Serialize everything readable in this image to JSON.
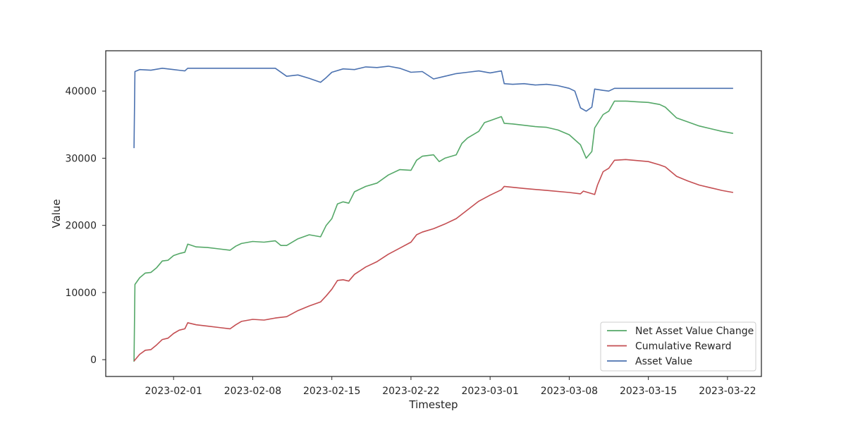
{
  "chart_data": {
    "type": "line",
    "title": "",
    "xlabel": "Timestep",
    "ylabel": "Value",
    "x_type": "date",
    "xlim": [
      "2023-01-26",
      "2023-03-25"
    ],
    "ylim": [
      -2500,
      46000
    ],
    "x_ticks": [
      "2023-02-01",
      "2023-02-08",
      "2023-02-15",
      "2023-02-22",
      "2023-03-01",
      "2023-03-08",
      "2023-03-15",
      "2023-03-22"
    ],
    "y_ticks": [
      0,
      10000,
      20000,
      30000,
      40000
    ],
    "y_tick_labels": [
      "0",
      "10000",
      "20000",
      "30000",
      "40000"
    ],
    "grid": false,
    "legend_position": "lower-right",
    "series": [
      {
        "name": "Net Asset Value Change",
        "color": "#55a868",
        "points": [
          [
            "2023-01-28T12:00",
            -300
          ],
          [
            "2023-01-28T14:00",
            11200
          ],
          [
            "2023-01-29T00:00",
            12200
          ],
          [
            "2023-01-29T12:00",
            12900
          ],
          [
            "2023-01-30T00:00",
            13000
          ],
          [
            "2023-01-30T12:00",
            13700
          ],
          [
            "2023-01-31T00:00",
            14700
          ],
          [
            "2023-01-31T12:00",
            14800
          ],
          [
            "2023-02-01T00:00",
            15500
          ],
          [
            "2023-02-01T12:00",
            15800
          ],
          [
            "2023-02-02T00:00",
            16000
          ],
          [
            "2023-02-02T06:00",
            17200
          ],
          [
            "2023-02-03T00:00",
            16800
          ],
          [
            "2023-02-04T00:00",
            16700
          ],
          [
            "2023-02-05T00:00",
            16500
          ],
          [
            "2023-02-06T00:00",
            16300
          ],
          [
            "2023-02-06T12:00",
            16900
          ],
          [
            "2023-02-07T00:00",
            17300
          ],
          [
            "2023-02-08T00:00",
            17600
          ],
          [
            "2023-02-09T00:00",
            17500
          ],
          [
            "2023-02-10T00:00",
            17700
          ],
          [
            "2023-02-10T12:00",
            17000
          ],
          [
            "2023-02-11T00:00",
            17000
          ],
          [
            "2023-02-12T00:00",
            18000
          ],
          [
            "2023-02-13T00:00",
            18600
          ],
          [
            "2023-02-14T00:00",
            18300
          ],
          [
            "2023-02-14T12:00",
            20000
          ],
          [
            "2023-02-15T00:00",
            21000
          ],
          [
            "2023-02-15T12:00",
            23200
          ],
          [
            "2023-02-16T00:00",
            23500
          ],
          [
            "2023-02-16T12:00",
            23300
          ],
          [
            "2023-02-17T00:00",
            25000
          ],
          [
            "2023-02-18T00:00",
            25800
          ],
          [
            "2023-02-19T00:00",
            26300
          ],
          [
            "2023-02-20T00:00",
            27500
          ],
          [
            "2023-02-21T00:00",
            28300
          ],
          [
            "2023-02-22T00:00",
            28200
          ],
          [
            "2023-02-22T12:00",
            29700
          ],
          [
            "2023-02-23T00:00",
            30300
          ],
          [
            "2023-02-24T00:00",
            30500
          ],
          [
            "2023-02-24T12:00",
            29500
          ],
          [
            "2023-02-25T00:00",
            30000
          ],
          [
            "2023-02-26T00:00",
            30500
          ],
          [
            "2023-02-26T12:00",
            32200
          ],
          [
            "2023-02-27T00:00",
            33000
          ],
          [
            "2023-02-28T00:00",
            34000
          ],
          [
            "2023-02-28T12:00",
            35300
          ],
          [
            "2023-03-01T00:00",
            35600
          ],
          [
            "2023-03-02T00:00",
            36200
          ],
          [
            "2023-03-02T06:00",
            35200
          ],
          [
            "2023-03-03T00:00",
            35100
          ],
          [
            "2023-03-04T00:00",
            34900
          ],
          [
            "2023-03-05T00:00",
            34700
          ],
          [
            "2023-03-06T00:00",
            34600
          ],
          [
            "2023-03-07T00:00",
            34200
          ],
          [
            "2023-03-08T00:00",
            33500
          ],
          [
            "2023-03-09T00:00",
            32000
          ],
          [
            "2023-03-09T12:00",
            30000
          ],
          [
            "2023-03-10T00:00",
            31000
          ],
          [
            "2023-03-10T06:00",
            34500
          ],
          [
            "2023-03-11T00:00",
            36500
          ],
          [
            "2023-03-11T12:00",
            37000
          ],
          [
            "2023-03-12T00:00",
            38500
          ],
          [
            "2023-03-13T00:00",
            38500
          ],
          [
            "2023-03-14T00:00",
            38400
          ],
          [
            "2023-03-15T00:00",
            38300
          ],
          [
            "2023-03-16T00:00",
            38000
          ],
          [
            "2023-03-16T12:00",
            37600
          ],
          [
            "2023-03-17T12:00",
            36000
          ],
          [
            "2023-03-18T12:00",
            35400
          ],
          [
            "2023-03-19T12:00",
            34800
          ],
          [
            "2023-03-20T12:00",
            34400
          ],
          [
            "2023-03-21T12:00",
            34000
          ],
          [
            "2023-03-22T12:00",
            33700
          ]
        ]
      },
      {
        "name": "Cumulative Reward",
        "color": "#c44e52",
        "points": [
          [
            "2023-01-28T12:00",
            -200
          ],
          [
            "2023-01-29T00:00",
            800
          ],
          [
            "2023-01-29T12:00",
            1400
          ],
          [
            "2023-01-30T00:00",
            1500
          ],
          [
            "2023-01-30T12:00",
            2200
          ],
          [
            "2023-01-31T00:00",
            3000
          ],
          [
            "2023-01-31T12:00",
            3200
          ],
          [
            "2023-02-01T00:00",
            3900
          ],
          [
            "2023-02-01T12:00",
            4400
          ],
          [
            "2023-02-02T00:00",
            4600
          ],
          [
            "2023-02-02T06:00",
            5500
          ],
          [
            "2023-02-03T00:00",
            5200
          ],
          [
            "2023-02-04T00:00",
            5000
          ],
          [
            "2023-02-05T00:00",
            4800
          ],
          [
            "2023-02-06T00:00",
            4600
          ],
          [
            "2023-02-06T12:00",
            5200
          ],
          [
            "2023-02-07T00:00",
            5700
          ],
          [
            "2023-02-08T00:00",
            6000
          ],
          [
            "2023-02-09T00:00",
            5900
          ],
          [
            "2023-02-10T00:00",
            6200
          ],
          [
            "2023-02-11T00:00",
            6400
          ],
          [
            "2023-02-12T00:00",
            7300
          ],
          [
            "2023-02-13T00:00",
            8000
          ],
          [
            "2023-02-14T00:00",
            8600
          ],
          [
            "2023-02-14T12:00",
            9500
          ],
          [
            "2023-02-15T00:00",
            10500
          ],
          [
            "2023-02-15T12:00",
            11800
          ],
          [
            "2023-02-16T00:00",
            11900
          ],
          [
            "2023-02-16T12:00",
            11700
          ],
          [
            "2023-02-17T00:00",
            12700
          ],
          [
            "2023-02-18T00:00",
            13800
          ],
          [
            "2023-02-19T00:00",
            14600
          ],
          [
            "2023-02-20T00:00",
            15700
          ],
          [
            "2023-02-21T00:00",
            16600
          ],
          [
            "2023-02-22T00:00",
            17500
          ],
          [
            "2023-02-22T12:00",
            18600
          ],
          [
            "2023-02-23T00:00",
            19000
          ],
          [
            "2023-02-24T00:00",
            19500
          ],
          [
            "2023-02-25T00:00",
            20200
          ],
          [
            "2023-02-26T00:00",
            21000
          ],
          [
            "2023-02-27T00:00",
            22300
          ],
          [
            "2023-02-28T00:00",
            23600
          ],
          [
            "2023-03-01T00:00",
            24500
          ],
          [
            "2023-03-02T00:00",
            25300
          ],
          [
            "2023-03-02T06:00",
            25800
          ],
          [
            "2023-03-04T00:00",
            25500
          ],
          [
            "2023-03-06T00:00",
            25200
          ],
          [
            "2023-03-08T00:00",
            24900
          ],
          [
            "2023-03-09T00:00",
            24700
          ],
          [
            "2023-03-09T06:00",
            25100
          ],
          [
            "2023-03-10T06:00",
            24600
          ],
          [
            "2023-03-10T12:00",
            26000
          ],
          [
            "2023-03-11T00:00",
            28000
          ],
          [
            "2023-03-11T12:00",
            28500
          ],
          [
            "2023-03-12T00:00",
            29700
          ],
          [
            "2023-03-13T00:00",
            29800
          ],
          [
            "2023-03-15T00:00",
            29500
          ],
          [
            "2023-03-16T00:00",
            29000
          ],
          [
            "2023-03-16T12:00",
            28700
          ],
          [
            "2023-03-17T12:00",
            27300
          ],
          [
            "2023-03-18T12:00",
            26600
          ],
          [
            "2023-03-19T12:00",
            26000
          ],
          [
            "2023-03-20T12:00",
            25600
          ],
          [
            "2023-03-21T12:00",
            25200
          ],
          [
            "2023-03-22T12:00",
            24900
          ]
        ]
      },
      {
        "name": "Asset Value",
        "color": "#4c72b0",
        "points": [
          [
            "2023-01-28T12:00",
            31500
          ],
          [
            "2023-01-28T14:00",
            42900
          ],
          [
            "2023-01-29T00:00",
            43200
          ],
          [
            "2023-01-30T00:00",
            43100
          ],
          [
            "2023-01-31T00:00",
            43400
          ],
          [
            "2023-02-01T00:00",
            43200
          ],
          [
            "2023-02-02T00:00",
            43000
          ],
          [
            "2023-02-02T06:00",
            43400
          ],
          [
            "2023-02-05T00:00",
            43400
          ],
          [
            "2023-02-08T00:00",
            43400
          ],
          [
            "2023-02-10T00:00",
            43400
          ],
          [
            "2023-02-11T00:00",
            42200
          ],
          [
            "2023-02-12T00:00",
            42400
          ],
          [
            "2023-02-13T00:00",
            41900
          ],
          [
            "2023-02-14T00:00",
            41300
          ],
          [
            "2023-02-14T12:00",
            42000
          ],
          [
            "2023-02-15T00:00",
            42800
          ],
          [
            "2023-02-16T00:00",
            43300
          ],
          [
            "2023-02-17T00:00",
            43200
          ],
          [
            "2023-02-18T00:00",
            43600
          ],
          [
            "2023-02-19T00:00",
            43500
          ],
          [
            "2023-02-20T00:00",
            43700
          ],
          [
            "2023-02-21T00:00",
            43400
          ],
          [
            "2023-02-22T00:00",
            42800
          ],
          [
            "2023-02-23T00:00",
            42900
          ],
          [
            "2023-02-24T00:00",
            41800
          ],
          [
            "2023-02-25T00:00",
            42200
          ],
          [
            "2023-02-26T00:00",
            42600
          ],
          [
            "2023-02-27T00:00",
            42800
          ],
          [
            "2023-02-28T00:00",
            43000
          ],
          [
            "2023-03-01T00:00",
            42700
          ],
          [
            "2023-03-02T00:00",
            43000
          ],
          [
            "2023-03-02T06:00",
            41100
          ],
          [
            "2023-03-03T00:00",
            41000
          ],
          [
            "2023-03-04T00:00",
            41100
          ],
          [
            "2023-03-05T00:00",
            40900
          ],
          [
            "2023-03-06T00:00",
            41000
          ],
          [
            "2023-03-07T00:00",
            40800
          ],
          [
            "2023-03-08T00:00",
            40400
          ],
          [
            "2023-03-08T12:00",
            40000
          ],
          [
            "2023-03-09T00:00",
            37500
          ],
          [
            "2023-03-09T12:00",
            37000
          ],
          [
            "2023-03-10T00:00",
            37600
          ],
          [
            "2023-03-10T06:00",
            40300
          ],
          [
            "2023-03-11T00:00",
            40100
          ],
          [
            "2023-03-11T12:00",
            40000
          ],
          [
            "2023-03-12T00:00",
            40400
          ],
          [
            "2023-03-22T12:00",
            40400
          ]
        ]
      }
    ]
  }
}
